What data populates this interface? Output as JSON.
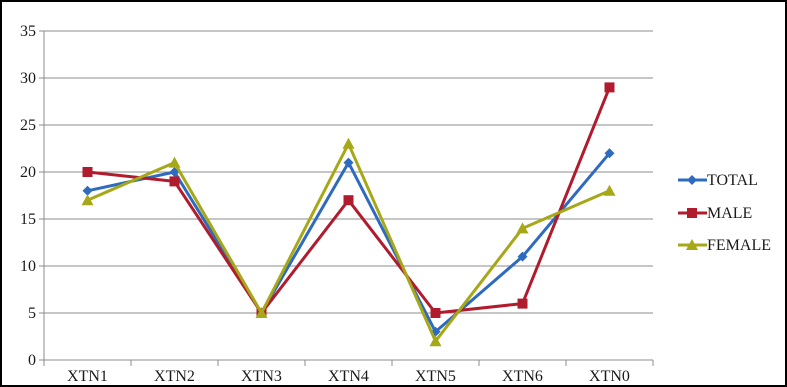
{
  "chart_data": {
    "type": "line",
    "categories": [
      "XTN1",
      "XTN2",
      "XTN3",
      "XTN4",
      "XTN5",
      "XTN6",
      "XTN0"
    ],
    "series": [
      {
        "name": "TOTAL",
        "values": [
          18,
          20,
          5,
          21,
          3,
          11,
          22
        ],
        "color": "#2e6bbf",
        "marker": "diamond"
      },
      {
        "name": "MALE",
        "values": [
          20,
          19,
          5,
          17,
          5,
          6,
          29
        ],
        "color": "#b01c2e",
        "marker": "square"
      },
      {
        "name": "FEMALE",
        "values": [
          17,
          21,
          5,
          23,
          2,
          14,
          18
        ],
        "color": "#a6a817",
        "marker": "triangle"
      }
    ],
    "y_ticks": [
      "0",
      "5",
      "10",
      "15",
      "20",
      "25",
      "30",
      "35"
    ],
    "ylim": [
      0,
      35
    ],
    "grid": "horizontal",
    "legend_position": "right"
  }
}
